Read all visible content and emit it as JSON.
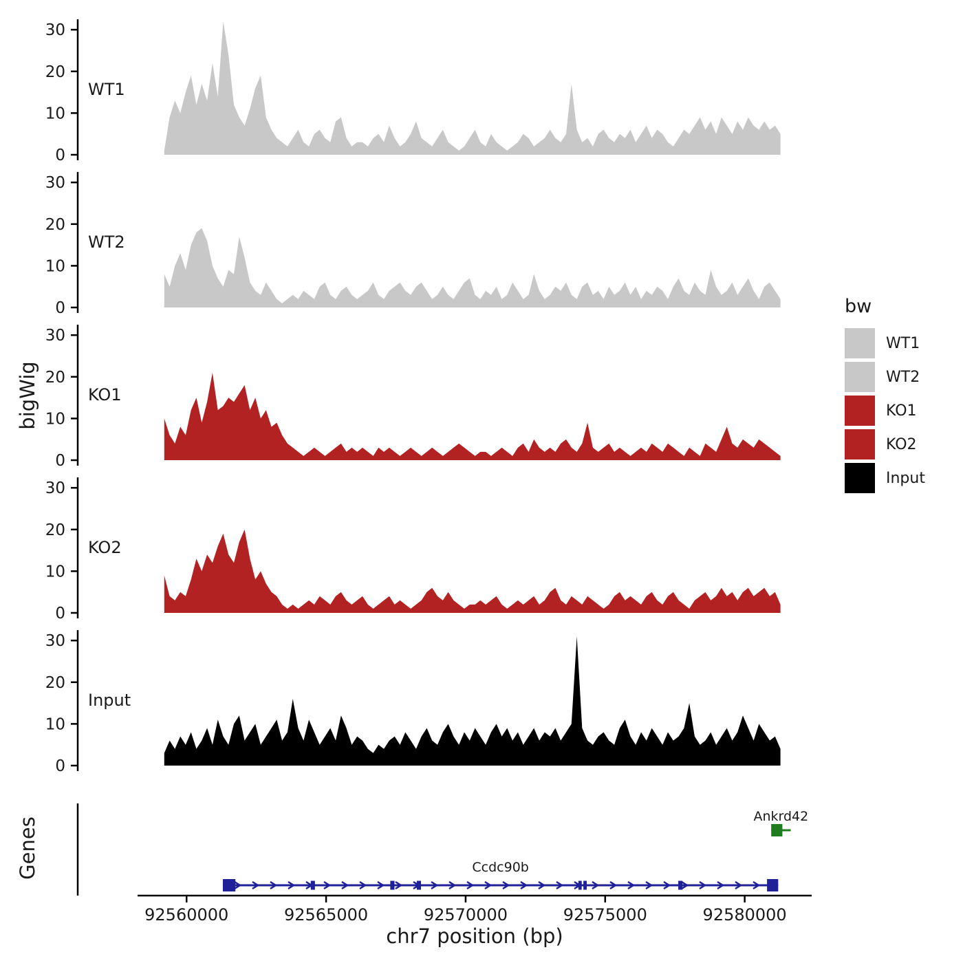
{
  "figure": {
    "y_axis_title": "bigWig",
    "genes_axis_title": "Genes",
    "x_axis_title": "chr7 position (bp)"
  },
  "legend": {
    "title": "bw",
    "entries": [
      {
        "label": "WT1",
        "color": "#c8c8c8"
      },
      {
        "label": "WT2",
        "color": "#c8c8c8"
      },
      {
        "label": "KO1",
        "color": "#b22222"
      },
      {
        "label": "KO2",
        "color": "#b22222"
      },
      {
        "label": "Input",
        "color": "#000000"
      }
    ]
  },
  "chart_data": {
    "type": "area",
    "title": "",
    "xlabel": "chr7 position (bp)",
    "ylabel": "bigWig",
    "xlim": [
      92556100,
      92582400
    ],
    "ylim": [
      0,
      33
    ],
    "y_ticks": [
      0,
      10,
      20,
      30
    ],
    "x_axis": {
      "ticks": [
        92560000,
        92565000,
        92570000,
        92575000,
        92580000
      ],
      "tick_labels": [
        "92560000",
        "92565000",
        "92570000",
        "92575000",
        "92580000"
      ]
    },
    "x_start": 92559200,
    "x_step": 192,
    "tracks": [
      {
        "name": "WT1",
        "color": "#c8c8c8",
        "values": [
          1,
          9,
          13,
          10,
          15,
          19,
          12,
          17,
          13,
          22,
          14,
          32,
          24,
          12,
          9,
          7,
          11,
          16,
          19,
          9,
          6,
          4,
          3,
          2,
          4,
          6,
          3,
          2,
          5,
          6,
          4,
          3,
          8,
          9,
          4,
          2,
          3,
          3,
          2,
          4,
          5,
          3,
          7,
          4,
          2,
          3,
          5,
          8,
          4,
          3,
          2,
          4,
          6,
          3,
          2,
          1,
          2,
          4,
          6,
          3,
          2,
          5,
          3,
          2,
          1,
          2,
          3,
          5,
          4,
          2,
          3,
          4,
          6,
          4,
          3,
          5,
          17,
          6,
          3,
          4,
          2,
          5,
          6,
          4,
          3,
          5,
          4,
          6,
          3,
          5,
          7,
          4,
          6,
          5,
          3,
          2,
          4,
          6,
          5,
          7,
          9,
          6,
          8,
          5,
          9,
          7,
          5,
          8,
          6,
          9,
          7,
          6,
          8,
          6,
          7,
          5
        ]
      },
      {
        "name": "WT2",
        "color": "#c8c8c8",
        "values": [
          8,
          5,
          10,
          13,
          9,
          15,
          18,
          19,
          16,
          10,
          7,
          5,
          9,
          8,
          17,
          12,
          6,
          4,
          3,
          6,
          4,
          2,
          1,
          2,
          3,
          2,
          4,
          3,
          2,
          5,
          6,
          3,
          2,
          4,
          5,
          3,
          2,
          3,
          4,
          6,
          3,
          2,
          4,
          5,
          6,
          4,
          3,
          5,
          6,
          4,
          2,
          3,
          5,
          3,
          2,
          4,
          6,
          7,
          3,
          2,
          4,
          3,
          5,
          2,
          3,
          6,
          4,
          2,
          3,
          8,
          4,
          2,
          3,
          5,
          4,
          6,
          3,
          2,
          5,
          6,
          3,
          4,
          2,
          5,
          3,
          4,
          6,
          3,
          5,
          2,
          4,
          3,
          5,
          4,
          2,
          5,
          7,
          4,
          3,
          6,
          4,
          3,
          9,
          5,
          3,
          4,
          6,
          3,
          5,
          7,
          4,
          2,
          5,
          6,
          4,
          2
        ]
      },
      {
        "name": "KO1",
        "color": "#b22222",
        "values": [
          10,
          6,
          4,
          8,
          6,
          12,
          15,
          9,
          14,
          21,
          12,
          13,
          15,
          14,
          16,
          18,
          12,
          15,
          10,
          12,
          8,
          9,
          6,
          4,
          3,
          2,
          1,
          2,
          3,
          2,
          1,
          2,
          3,
          4,
          2,
          3,
          2,
          3,
          2,
          1,
          3,
          2,
          3,
          2,
          1,
          2,
          3,
          2,
          1,
          2,
          3,
          2,
          1,
          2,
          3,
          4,
          3,
          2,
          1,
          2,
          2,
          1,
          2,
          3,
          2,
          1,
          3,
          4,
          2,
          5,
          3,
          2,
          3,
          2,
          4,
          5,
          3,
          2,
          4,
          9,
          3,
          2,
          3,
          4,
          2,
          3,
          2,
          1,
          2,
          3,
          2,
          4,
          3,
          2,
          4,
          3,
          2,
          1,
          3,
          2,
          1,
          4,
          3,
          2,
          5,
          8,
          4,
          3,
          5,
          4,
          3,
          5,
          4,
          3,
          2,
          1
        ]
      },
      {
        "name": "KO2",
        "color": "#b22222",
        "values": [
          9,
          4,
          3,
          5,
          4,
          8,
          13,
          10,
          14,
          12,
          16,
          19,
          14,
          12,
          17,
          20,
          13,
          8,
          10,
          7,
          5,
          4,
          2,
          1,
          2,
          1,
          2,
          3,
          2,
          4,
          3,
          2,
          4,
          5,
          3,
          2,
          3,
          4,
          2,
          1,
          2,
          3,
          4,
          2,
          3,
          2,
          1,
          2,
          3,
          5,
          6,
          4,
          3,
          5,
          3,
          2,
          1,
          2,
          2,
          3,
          2,
          3,
          4,
          2,
          1,
          2,
          3,
          2,
          3,
          4,
          2,
          3,
          5,
          6,
          3,
          2,
          4,
          3,
          2,
          4,
          3,
          2,
          1,
          2,
          4,
          5,
          3,
          4,
          3,
          2,
          4,
          5,
          3,
          2,
          4,
          5,
          3,
          2,
          1,
          3,
          4,
          5,
          3,
          4,
          6,
          4,
          5,
          3,
          5,
          6,
          4,
          5,
          6,
          4,
          5,
          2
        ]
      },
      {
        "name": "Input",
        "color": "#000000",
        "values": [
          3,
          6,
          4,
          7,
          5,
          8,
          4,
          6,
          9,
          5,
          11,
          7,
          5,
          10,
          12,
          6,
          8,
          10,
          5,
          7,
          9,
          11,
          6,
          8,
          16,
          9,
          6,
          11,
          8,
          5,
          7,
          9,
          6,
          12,
          9,
          5,
          7,
          6,
          4,
          3,
          5,
          4,
          6,
          7,
          5,
          8,
          6,
          4,
          7,
          9,
          6,
          5,
          8,
          10,
          7,
          5,
          8,
          6,
          9,
          7,
          5,
          8,
          10,
          7,
          9,
          6,
          8,
          5,
          7,
          9,
          6,
          8,
          7,
          9,
          6,
          8,
          10,
          31,
          9,
          6,
          5,
          7,
          8,
          6,
          5,
          9,
          11,
          7,
          5,
          8,
          6,
          9,
          7,
          5,
          8,
          6,
          7,
          9,
          15,
          7,
          5,
          6,
          8,
          5,
          7,
          9,
          6,
          8,
          12,
          9,
          6,
          10,
          8,
          6,
          7,
          4
        ]
      }
    ],
    "genes_panel": {
      "label": "Genes",
      "genes": [
        {
          "name": "Ccdc90b",
          "start": 92561300,
          "end": 92581200,
          "strand": "+",
          "color": "#202099",
          "row": 0,
          "exon_boxes": [
            {
              "start": 92561300,
              "end": 92561750,
              "big": true
            },
            {
              "start": 92564450,
              "end": 92564600,
              "big": false
            },
            {
              "start": 92567300,
              "end": 92567450,
              "big": false
            },
            {
              "start": 92568250,
              "end": 92568400,
              "big": false
            },
            {
              "start": 92574040,
              "end": 92574160,
              "big": false
            },
            {
              "start": 92574220,
              "end": 92574340,
              "big": false
            },
            {
              "start": 92577620,
              "end": 92577770,
              "big": false
            },
            {
              "start": 92580800,
              "end": 92581200,
              "big": true
            }
          ]
        },
        {
          "name": "Ankrd42",
          "start": 92580950,
          "end": 92581650,
          "strand": "-",
          "color": "#1f7d1f",
          "row": 1,
          "exon_boxes": [
            {
              "start": 92580950,
              "end": 92581350,
              "big": true
            }
          ]
        }
      ]
    }
  }
}
